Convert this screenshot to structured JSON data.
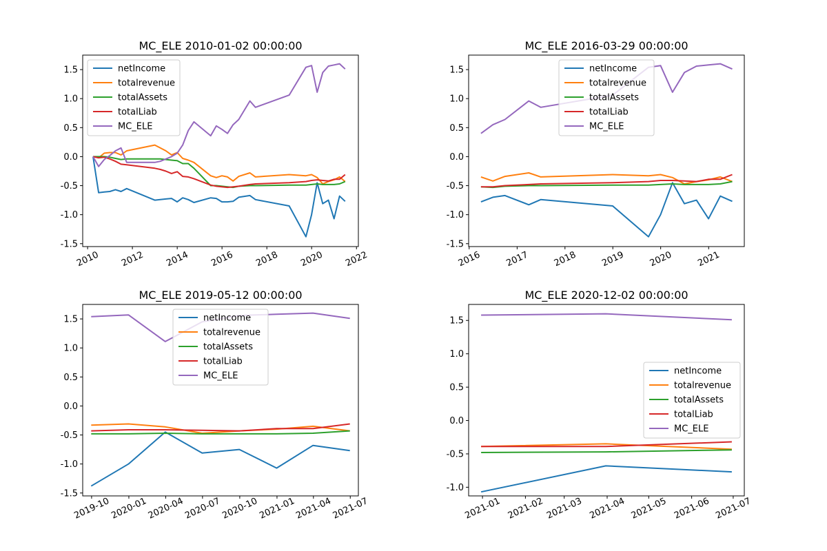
{
  "colors": {
    "netIncome": "#1f77b4",
    "totalrevenue": "#ff7f0e",
    "totalAssets": "#2ca02c",
    "totalLiab": "#d62728",
    "MC_ELE": "#9467bd"
  },
  "chart_data": [
    {
      "type": "line",
      "title": "MC_ELE 2010-01-02 00:00:00",
      "legend_position": "upper-left",
      "grid": false,
      "xlim": [
        "2009-10-13",
        "2022-02-01"
      ],
      "ylim": [
        -1.55,
        1.75
      ],
      "xticks": [
        "2010",
        "2012",
        "2014",
        "2016",
        "2018",
        "2020",
        "2022"
      ],
      "yticks": [
        "-1.5",
        "-1.0",
        "-0.5",
        "0.0",
        "0.5",
        "1.0",
        "1.5"
      ],
      "series": [
        {
          "name": "netIncome",
          "x": [
            "2010-03-31",
            "2010-06-30",
            "2010-09-30",
            "2010-12-31",
            "2011-03-31",
            "2011-06-30",
            "2011-09-30",
            "2012-12-31",
            "2013-03-31",
            "2013-06-30",
            "2013-09-30",
            "2013-12-31",
            "2014-03-31",
            "2014-06-30",
            "2014-09-30",
            "2015-06-30",
            "2015-09-30",
            "2015-12-31",
            "2016-03-31",
            "2016-06-30",
            "2016-09-30",
            "2017-03-31",
            "2017-06-30",
            "2018-12-31",
            "2019-09-30",
            "2019-12-31",
            "2020-03-31",
            "2020-06-30",
            "2020-09-30",
            "2020-12-31",
            "2021-03-31",
            "2021-06-30"
          ],
          "y": [
            0.0,
            -0.62,
            -0.61,
            -0.6,
            -0.57,
            -0.6,
            -0.55,
            -0.75,
            -0.74,
            -0.73,
            -0.72,
            -0.78,
            -0.71,
            -0.74,
            -0.79,
            -0.71,
            -0.72,
            -0.78,
            -0.78,
            -0.77,
            -0.7,
            -0.67,
            -0.74,
            -0.85,
            -1.38,
            -1.0,
            -0.45,
            -0.81,
            -0.75,
            -1.07,
            -0.68,
            -0.77
          ]
        },
        {
          "name": "totalrevenue",
          "x": [
            "2010-03-31",
            "2010-06-30",
            "2010-09-30",
            "2010-12-31",
            "2011-03-31",
            "2011-06-30",
            "2011-09-30",
            "2012-12-31",
            "2013-03-31",
            "2013-06-30",
            "2013-09-30",
            "2013-12-31",
            "2014-03-31",
            "2014-06-30",
            "2014-09-30",
            "2015-06-30",
            "2015-09-30",
            "2015-12-31",
            "2016-03-31",
            "2016-06-30",
            "2016-09-30",
            "2017-03-31",
            "2017-06-30",
            "2018-12-31",
            "2019-09-30",
            "2019-12-31",
            "2020-03-31",
            "2020-06-30",
            "2020-09-30",
            "2020-12-31",
            "2021-03-31",
            "2021-06-30"
          ],
          "y": [
            0.0,
            -0.02,
            0.06,
            0.07,
            0.07,
            0.03,
            0.1,
            0.2,
            0.15,
            0.1,
            0.03,
            0.07,
            -0.03,
            -0.06,
            -0.1,
            -0.33,
            -0.36,
            -0.33,
            -0.35,
            -0.42,
            -0.34,
            -0.28,
            -0.35,
            -0.31,
            -0.33,
            -0.31,
            -0.36,
            -0.47,
            -0.43,
            -0.4,
            -0.35,
            -0.43
          ]
        },
        {
          "name": "totalAssets",
          "x": [
            "2010-03-31",
            "2010-06-30",
            "2010-09-30",
            "2010-12-31",
            "2011-03-31",
            "2011-06-30",
            "2011-09-30",
            "2012-12-31",
            "2013-03-31",
            "2013-06-30",
            "2013-09-30",
            "2013-12-31",
            "2014-03-31",
            "2014-06-30",
            "2014-09-30",
            "2015-06-30",
            "2015-09-30",
            "2015-12-31",
            "2016-03-31",
            "2016-06-30",
            "2016-09-30",
            "2017-03-31",
            "2017-06-30",
            "2018-12-31",
            "2019-09-30",
            "2019-12-31",
            "2020-03-31",
            "2020-06-30",
            "2020-09-30",
            "2020-12-31",
            "2021-03-31",
            "2021-06-30"
          ],
          "y": [
            0.0,
            0.0,
            0.0,
            -0.01,
            -0.03,
            -0.05,
            -0.04,
            -0.04,
            -0.04,
            -0.05,
            -0.06,
            -0.07,
            -0.12,
            -0.12,
            -0.2,
            -0.5,
            -0.5,
            -0.51,
            -0.52,
            -0.53,
            -0.51,
            -0.5,
            -0.5,
            -0.49,
            -0.49,
            -0.48,
            -0.47,
            -0.48,
            -0.48,
            -0.48,
            -0.47,
            -0.43
          ]
        },
        {
          "name": "totalLiab",
          "x": [
            "2010-03-31",
            "2010-06-30",
            "2010-09-30",
            "2010-12-31",
            "2011-03-31",
            "2011-06-30",
            "2011-09-30",
            "2012-12-31",
            "2013-03-31",
            "2013-06-30",
            "2013-09-30",
            "2013-12-31",
            "2014-03-31",
            "2014-06-30",
            "2014-09-30",
            "2015-06-30",
            "2015-09-30",
            "2015-12-31",
            "2016-03-31",
            "2016-06-30",
            "2016-09-30",
            "2017-03-31",
            "2017-06-30",
            "2018-12-31",
            "2019-09-30",
            "2019-12-31",
            "2020-03-31",
            "2020-06-30",
            "2020-09-30",
            "2020-12-31",
            "2021-03-31",
            "2021-06-30"
          ],
          "y": [
            0.0,
            -0.02,
            -0.01,
            -0.04,
            -0.08,
            -0.13,
            -0.14,
            -0.2,
            -0.22,
            -0.25,
            -0.29,
            -0.26,
            -0.34,
            -0.35,
            -0.38,
            -0.49,
            -0.51,
            -0.52,
            -0.53,
            -0.52,
            -0.51,
            -0.48,
            -0.47,
            -0.45,
            -0.43,
            -0.41,
            -0.4,
            -0.41,
            -0.42,
            -0.39,
            -0.39,
            -0.31
          ]
        },
        {
          "name": "MC_ELE",
          "x": [
            "2010-03-31",
            "2010-06-30",
            "2010-09-30",
            "2010-12-31",
            "2011-03-31",
            "2011-06-30",
            "2011-09-30",
            "2012-12-31",
            "2013-03-31",
            "2013-06-30",
            "2013-09-30",
            "2013-12-31",
            "2014-03-31",
            "2014-06-30",
            "2014-09-30",
            "2015-06-30",
            "2015-09-30",
            "2015-12-31",
            "2016-03-31",
            "2016-06-30",
            "2016-09-30",
            "2017-03-31",
            "2017-06-30",
            "2018-12-31",
            "2019-09-30",
            "2019-12-31",
            "2020-03-31",
            "2020-06-30",
            "2020-09-30",
            "2020-12-31",
            "2021-03-31",
            "2021-06-30"
          ],
          "y": [
            0.0,
            -0.17,
            -0.05,
            0.02,
            0.1,
            0.15,
            -0.1,
            -0.1,
            -0.08,
            -0.04,
            0.0,
            0.06,
            0.2,
            0.45,
            0.6,
            0.36,
            0.53,
            0.47,
            0.4,
            0.55,
            0.64,
            0.96,
            0.85,
            1.06,
            1.54,
            1.57,
            1.11,
            1.45,
            1.56,
            1.58,
            1.6,
            1.51
          ]
        }
      ]
    },
    {
      "type": "line",
      "title": "MC_ELE 2016-03-29 00:00:00",
      "legend_position": "upper-center",
      "grid": false,
      "xlim": [
        "2015-12-28",
        "2021-09-30"
      ],
      "ylim": [
        -1.55,
        1.75
      ],
      "xticks": [
        "2016",
        "2017",
        "2018",
        "2019",
        "2020",
        "2021"
      ],
      "yticks": [
        "-1.5",
        "-1.0",
        "-0.5",
        "0.0",
        "0.5",
        "1.0",
        "1.5"
      ],
      "series": [
        {
          "name": "netIncome",
          "x": [
            "2016-03-31",
            "2016-06-30",
            "2016-09-30",
            "2017-03-31",
            "2017-06-30",
            "2018-12-31",
            "2019-09-30",
            "2019-12-31",
            "2020-03-31",
            "2020-06-30",
            "2020-09-30",
            "2020-12-31",
            "2021-03-31",
            "2021-06-30"
          ],
          "y": [
            -0.78,
            -0.7,
            -0.67,
            -0.83,
            -0.74,
            -0.85,
            -1.38,
            -1.0,
            -0.45,
            -0.81,
            -0.75,
            -1.07,
            -0.68,
            -0.77
          ]
        },
        {
          "name": "totalrevenue",
          "x": [
            "2016-03-31",
            "2016-06-30",
            "2016-09-30",
            "2017-03-31",
            "2017-06-30",
            "2018-12-31",
            "2019-09-30",
            "2019-12-31",
            "2020-03-31",
            "2020-06-30",
            "2020-09-30",
            "2020-12-31",
            "2021-03-31",
            "2021-06-30"
          ],
          "y": [
            -0.35,
            -0.42,
            -0.34,
            -0.28,
            -0.35,
            -0.31,
            -0.33,
            -0.31,
            -0.36,
            -0.47,
            -0.43,
            -0.4,
            -0.35,
            -0.43
          ]
        },
        {
          "name": "totalAssets",
          "x": [
            "2016-03-31",
            "2016-06-30",
            "2016-09-30",
            "2017-03-31",
            "2017-06-30",
            "2018-12-31",
            "2019-09-30",
            "2019-12-31",
            "2020-03-31",
            "2020-06-30",
            "2020-09-30",
            "2020-12-31",
            "2021-03-31",
            "2021-06-30"
          ],
          "y": [
            -0.52,
            -0.53,
            -0.51,
            -0.5,
            -0.5,
            -0.49,
            -0.49,
            -0.48,
            -0.47,
            -0.48,
            -0.48,
            -0.48,
            -0.47,
            -0.43
          ]
        },
        {
          "name": "totalLiab",
          "x": [
            "2016-03-31",
            "2016-06-30",
            "2016-09-30",
            "2017-03-31",
            "2017-06-30",
            "2018-12-31",
            "2019-09-30",
            "2019-12-31",
            "2020-03-31",
            "2020-06-30",
            "2020-09-30",
            "2020-12-31",
            "2021-03-31",
            "2021-06-30"
          ],
          "y": [
            -0.52,
            -0.52,
            -0.5,
            -0.48,
            -0.47,
            -0.45,
            -0.43,
            -0.41,
            -0.41,
            -0.42,
            -0.43,
            -0.39,
            -0.39,
            -0.31
          ]
        },
        {
          "name": "MC_ELE",
          "x": [
            "2016-03-31",
            "2016-06-30",
            "2016-09-30",
            "2017-03-31",
            "2017-06-30",
            "2018-12-31",
            "2019-09-30",
            "2019-12-31",
            "2020-03-31",
            "2020-06-30",
            "2020-09-30",
            "2020-12-31",
            "2021-03-31",
            "2021-06-30"
          ],
          "y": [
            0.4,
            0.55,
            0.64,
            0.96,
            0.85,
            1.06,
            1.54,
            1.57,
            1.11,
            1.45,
            1.56,
            1.58,
            1.6,
            1.51
          ]
        }
      ]
    },
    {
      "type": "line",
      "title": "MC_ELE 2019-05-12 00:00:00",
      "legend_position": "upper-center",
      "grid": false,
      "xlim": [
        "2019-09-09",
        "2021-07-21"
      ],
      "ylim": [
        -1.55,
        1.75
      ],
      "xticks": [
        "2019-10",
        "2020-01",
        "2020-04",
        "2020-07",
        "2020-10",
        "2021-01",
        "2021-04",
        "2021-07"
      ],
      "yticks": [
        "-1.5",
        "-1.0",
        "-0.5",
        "0.0",
        "0.5",
        "1.0",
        "1.5"
      ],
      "series": [
        {
          "name": "netIncome",
          "x": [
            "2019-09-30",
            "2019-12-31",
            "2020-03-31",
            "2020-06-30",
            "2020-09-30",
            "2020-12-31",
            "2021-03-31",
            "2021-06-30"
          ],
          "y": [
            -1.38,
            -1.0,
            -0.45,
            -0.81,
            -0.75,
            -1.07,
            -0.68,
            -0.77
          ]
        },
        {
          "name": "totalrevenue",
          "x": [
            "2019-09-30",
            "2019-12-31",
            "2020-03-31",
            "2020-06-30",
            "2020-09-30",
            "2020-12-31",
            "2021-03-31",
            "2021-06-30"
          ],
          "y": [
            -0.33,
            -0.31,
            -0.36,
            -0.47,
            -0.43,
            -0.4,
            -0.35,
            -0.43
          ]
        },
        {
          "name": "totalAssets",
          "x": [
            "2019-09-30",
            "2019-12-31",
            "2020-03-31",
            "2020-06-30",
            "2020-09-30",
            "2020-12-31",
            "2021-03-31",
            "2021-06-30"
          ],
          "y": [
            -0.48,
            -0.48,
            -0.47,
            -0.48,
            -0.48,
            -0.48,
            -0.47,
            -0.43
          ]
        },
        {
          "name": "totalLiab",
          "x": [
            "2019-09-30",
            "2019-12-31",
            "2020-03-31",
            "2020-06-30",
            "2020-09-30",
            "2020-12-31",
            "2021-03-31",
            "2021-06-30"
          ],
          "y": [
            -0.43,
            -0.41,
            -0.41,
            -0.42,
            -0.43,
            -0.39,
            -0.39,
            -0.31
          ]
        },
        {
          "name": "MC_ELE",
          "x": [
            "2019-09-30",
            "2019-12-31",
            "2020-03-31",
            "2020-06-30",
            "2020-09-30",
            "2020-12-31",
            "2021-03-31",
            "2021-06-30"
          ],
          "y": [
            1.54,
            1.57,
            1.11,
            1.45,
            1.56,
            1.58,
            1.6,
            1.51
          ]
        }
      ]
    },
    {
      "type": "line",
      "title": "MC_ELE 2020-12-02 00:00:00",
      "legend_position": "center-right",
      "grid": false,
      "xlim": [
        "2020-12-22",
        "2021-07-09"
      ],
      "ylim": [
        -1.13,
        1.74
      ],
      "xticks": [
        "2021-01",
        "2021-02",
        "2021-03",
        "2021-04",
        "2021-05",
        "2021-06",
        "2021-07"
      ],
      "yticks": [
        "-1.0",
        "-0.5",
        "0.0",
        "0.5",
        "1.0",
        "1.5"
      ],
      "series": [
        {
          "name": "netIncome",
          "x": [
            "2020-12-31",
            "2021-03-31",
            "2021-06-30"
          ],
          "y": [
            -1.07,
            -0.68,
            -0.77
          ]
        },
        {
          "name": "totalrevenue",
          "x": [
            "2020-12-31",
            "2021-03-31",
            "2021-06-30"
          ],
          "y": [
            -0.39,
            -0.35,
            -0.43
          ]
        },
        {
          "name": "totalAssets",
          "x": [
            "2020-12-31",
            "2021-03-31",
            "2021-06-30"
          ],
          "y": [
            -0.48,
            -0.47,
            -0.44
          ]
        },
        {
          "name": "totalLiab",
          "x": [
            "2020-12-31",
            "2021-03-31",
            "2021-06-30"
          ],
          "y": [
            -0.39,
            -0.39,
            -0.32
          ]
        },
        {
          "name": "MC_ELE",
          "x": [
            "2020-12-31",
            "2021-03-31",
            "2021-06-30"
          ],
          "y": [
            1.58,
            1.6,
            1.51
          ]
        }
      ]
    }
  ]
}
